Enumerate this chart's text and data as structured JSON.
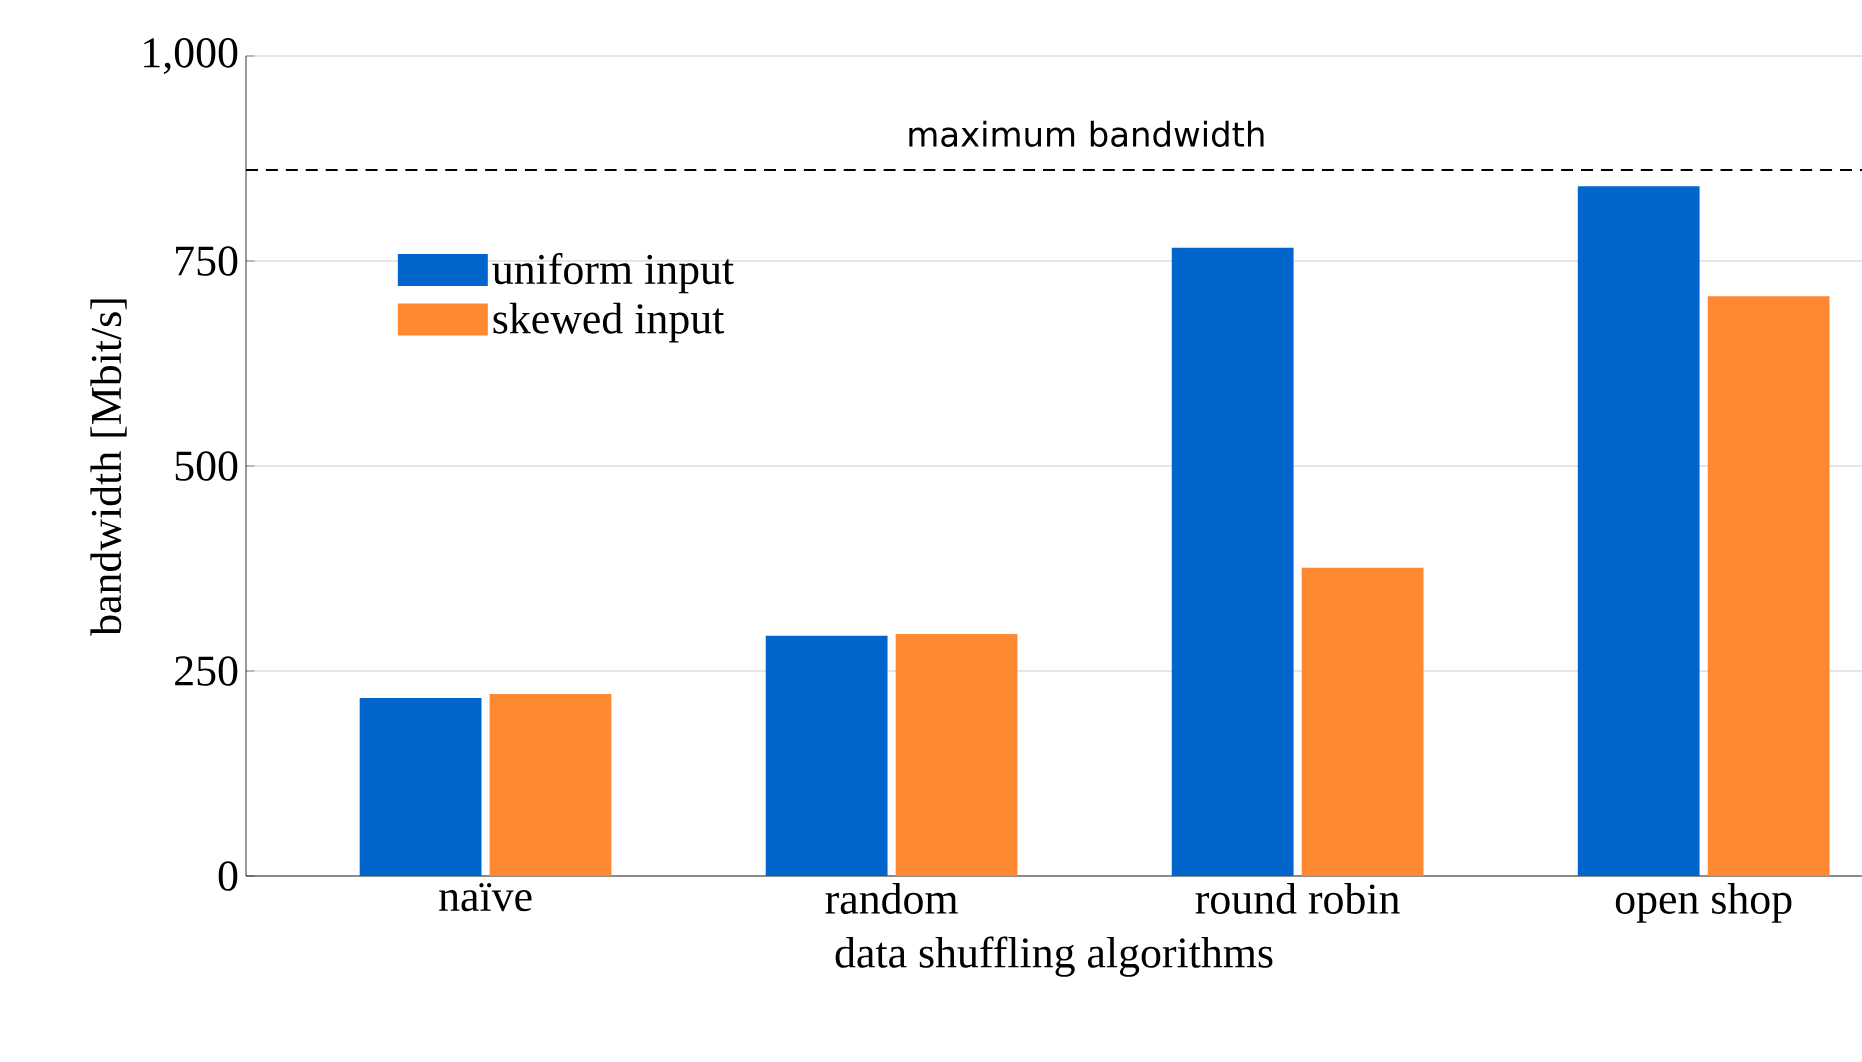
{
  "chart_data": {
    "type": "bar",
    "xlabel": "data shuffling algorithms",
    "ylabel": "bandwidth [Mbit/s]",
    "categories": [
      "naïve",
      "random",
      "round robin",
      "open shop"
    ],
    "series": [
      {
        "name": "uniform input",
        "color": "#0066cc",
        "values": [
          217,
          293,
          766,
          841
        ]
      },
      {
        "name": "skewed input",
        "color": "#ff8833",
        "values": [
          222,
          295,
          376,
          707
        ]
      }
    ],
    "ylim": [
      0,
      1000
    ],
    "yticks": [
      0,
      250,
      500,
      750,
      {
        "value": 1000,
        "label": "1,000"
      }
    ],
    "grid": "y",
    "legend": "top left",
    "ref_lines": [
      {
        "axis": "y",
        "value": 861,
        "label": "maximum bandwidth",
        "color": "#000000",
        "line_style": "dashed"
      }
    ]
  }
}
